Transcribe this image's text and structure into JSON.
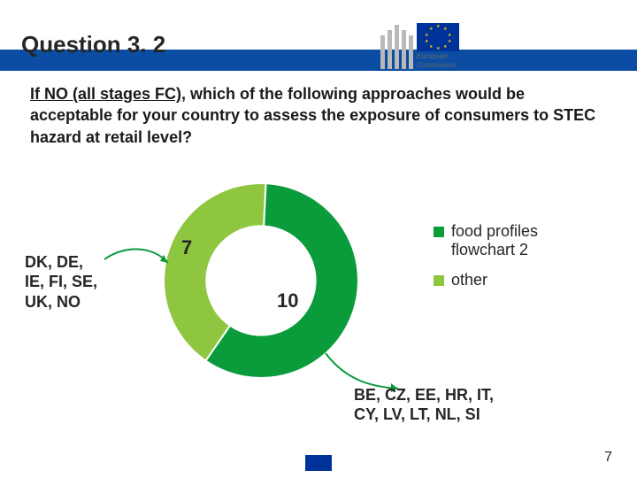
{
  "slide": {
    "title": "Question 3. 2",
    "question_prefix": "If NO (all stages FC)",
    "question_rest": ", which of the following approaches would be acceptable for your country to assess the exposure of consumers to STEC hazard at retail level?",
    "page_number": "7"
  },
  "chart": {
    "type": "donut",
    "series": [
      {
        "label": "food profiles flowchart 2",
        "value": 10,
        "color": "#0a9b3b"
      },
      {
        "label": "other",
        "value": 7,
        "color": "#8fc640"
      }
    ],
    "background_color": "#ffffff",
    "inner_radius_ratio": 0.56,
    "label_fontsize": 22,
    "label_color": "#262626",
    "legend_fontsize": 18
  },
  "callouts": {
    "left": "DK, DE, IE, FI, SE, UK, NO",
    "bottom": "BE, CZ, EE, HR, IT, CY, LV, LT, NL, SI"
  },
  "legend": {
    "items": [
      {
        "swatch": "#0a9b3b",
        "text": "food profiles flowchart 2"
      },
      {
        "swatch": "#8fc640",
        "text": "other"
      }
    ]
  },
  "branding": {
    "org_line1": "European",
    "org_line2": "Commission",
    "flag_bg": "#003399",
    "flag_star": "#ffcc00",
    "strip_color": "#0b4da2"
  },
  "arrows": {
    "stroke": "#0a9b3b",
    "width": 2
  }
}
